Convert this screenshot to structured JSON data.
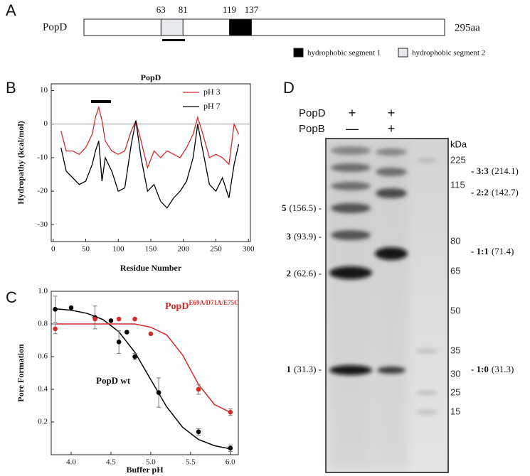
{
  "panel_a": {
    "letter": "A",
    "protein": "PopD",
    "length": 295,
    "length_label": "295aa",
    "segments": [
      {
        "start": 63,
        "end": 81,
        "name": "hydrophobic segment 2",
        "color": "#e6e8ec"
      },
      {
        "start": 119,
        "end": 137,
        "name": "hydrophobic segment 1",
        "color": "#000000"
      }
    ]
  },
  "chart_data": [
    {
      "type": "line",
      "letter": "B",
      "title": "PopD",
      "x_label": "Residue Number",
      "y_label": "Hydropathy (kcal/mol)",
      "x": [
        12,
        20,
        30,
        40,
        50,
        60,
        65,
        70,
        75,
        80,
        90,
        100,
        110,
        120,
        127,
        135,
        145,
        155,
        165,
        175,
        185,
        195,
        205,
        215,
        222,
        230,
        240,
        250,
        260,
        270,
        278,
        285
      ],
      "series": [
        {
          "name": "pH 3",
          "color": "#d42a2a",
          "values": [
            -2,
            -8,
            -8,
            -9,
            -7,
            -3,
            2,
            5,
            1,
            -5,
            -8,
            -9,
            -8,
            -2,
            1,
            -5,
            -13,
            -8,
            -10,
            -8,
            -9,
            -10,
            -7,
            -3,
            2,
            -3,
            -10,
            -9,
            -10,
            -12,
            0,
            -3
          ]
        },
        {
          "name": "pH 7",
          "color": "#000000",
          "values": [
            -7,
            -14,
            -16,
            -18,
            -17,
            -12,
            -8,
            -5,
            -17,
            -10,
            -14,
            -20,
            -19,
            -6,
            1,
            -10,
            -20,
            -18,
            -23,
            -25,
            -22,
            -20,
            -17,
            -10,
            0,
            -8,
            -18,
            -20,
            -16,
            -22,
            -12,
            -6
          ]
        }
      ],
      "xlim": [
        -3,
        303
      ],
      "ylim": [
        -35,
        12
      ],
      "xticks": [
        0,
        50,
        100,
        150,
        200,
        250,
        300
      ],
      "yticks": [
        10,
        0,
        -10,
        -20,
        -30
      ],
      "reference_line": 0,
      "legend": "upper right"
    },
    {
      "type": "scatter",
      "letter": "C",
      "x_label": "Buffer pH",
      "y_label": "Pore Formation",
      "fit_x": [
        3.8,
        4.0,
        4.2,
        4.4,
        4.6,
        4.8,
        5.0,
        5.2,
        5.4,
        5.6,
        5.8,
        6.0
      ],
      "series": [
        {
          "name": "PopD wt",
          "color": "#000000",
          "x": [
            3.8,
            4.0,
            4.3,
            4.5,
            4.6,
            4.7,
            4.8,
            5.1,
            5.6,
            6.0
          ],
          "values": [
            0.89,
            0.9,
            0.84,
            0.82,
            0.69,
            0.75,
            0.6,
            0.38,
            0.14,
            0.04
          ],
          "errors": [
            0.08,
            null,
            0.07,
            null,
            0.07,
            null,
            0.02,
            0.09,
            0.02,
            0.02
          ],
          "fit_values": [
            0.893,
            0.884,
            0.865,
            0.827,
            0.752,
            0.627,
            0.46,
            0.293,
            0.168,
            0.093,
            0.055,
            0.036
          ]
        },
        {
          "name": "PopD",
          "name_superscript": "E69A/D71A/E75C",
          "color": "#d42a2a",
          "x": [
            3.8,
            4.3,
            4.6,
            4.8,
            5.0,
            5.6,
            6.0
          ],
          "values": [
            0.77,
            0.83,
            0.83,
            0.83,
            0.74,
            0.4,
            0.26
          ],
          "errors": [
            0.03,
            null,
            null,
            null,
            null,
            0.03,
            0.02
          ],
          "fit_values": [
            0.8,
            0.8,
            0.8,
            0.8,
            0.8,
            0.8,
            0.78,
            0.733,
            0.61,
            0.43,
            0.307,
            0.259
          ]
        }
      ],
      "xlim": [
        3.75,
        6.1
      ],
      "ylim": [
        0,
        1.0
      ],
      "xticks": [
        {
          "value": 4,
          "label": "4.0"
        },
        4.5,
        {
          "value": 5,
          "label": "5.0"
        },
        5.5,
        {
          "value": 6,
          "label": "6.0"
        }
      ],
      "yticks": [
        0.2,
        0.4,
        0.6,
        0.8,
        {
          "value": 1,
          "label": "1.0"
        }
      ]
    }
  ],
  "panel_d": {
    "letter": "D",
    "rows": [
      {
        "label": "PopD",
        "lanes": [
          "+",
          "+"
        ]
      },
      {
        "label": "PopB",
        "lanes": [
          "—",
          "+"
        ]
      }
    ],
    "marker_unit": "kDa",
    "markers": [
      "225",
      "115",
      "80",
      "65",
      "50",
      "35",
      "30",
      "25",
      "15"
    ],
    "left_labels": [
      {
        "bold": "5",
        "text": "(156.5) -"
      },
      {
        "bold": "3",
        "text": "(93.9) -"
      },
      {
        "bold": "2",
        "text": "(62.6) -"
      },
      {
        "bold": "1",
        "text": "(31.3) -"
      }
    ],
    "right_labels": [
      {
        "bold": "- 3:3",
        "text": "(214.1)"
      },
      {
        "bold": "- 2:2",
        "text": "(142.7)"
      },
      {
        "bold": "- 1:1",
        "text": "(71.4)"
      },
      {
        "bold": "- 1:0",
        "text": "(31.3)"
      }
    ]
  }
}
